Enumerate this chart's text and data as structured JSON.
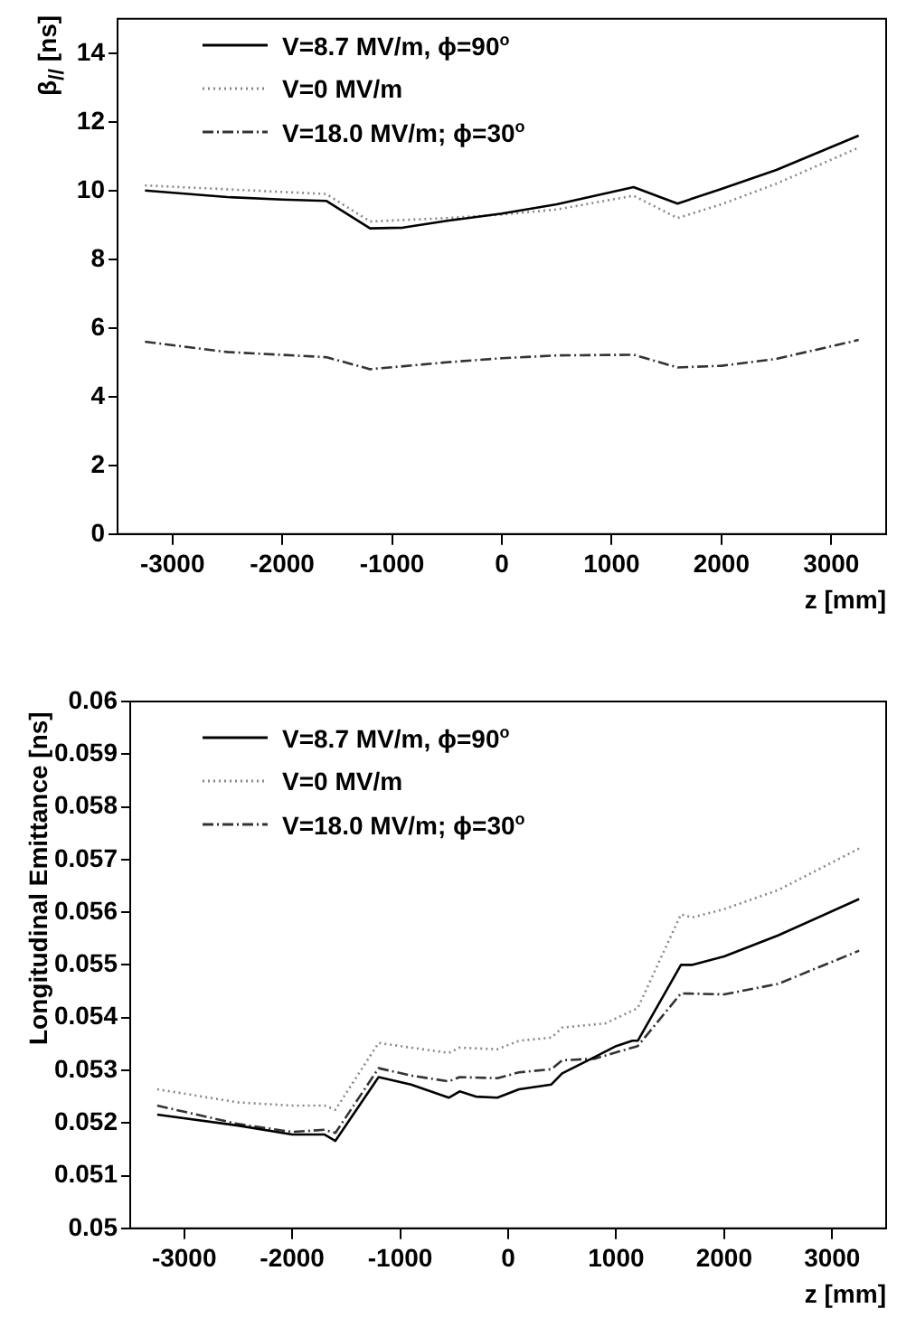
{
  "chart_data": [
    {
      "type": "line",
      "ylabel": "β$_{//}$ [ns]",
      "xlabel": "z [mm]",
      "xlim": [
        -3500,
        3500
      ],
      "xticks": [
        -3000,
        -2000,
        -1000,
        0,
        1000,
        2000,
        3000
      ],
      "ylim": [
        0,
        15
      ],
      "yticks": [
        0,
        2,
        4,
        6,
        8,
        10,
        12,
        14
      ],
      "grid": false,
      "legend": "top left",
      "marker": "none",
      "series": [
        {
          "name": "V=8.7 MV/m, ϕ=90$^{o}$",
          "color": "#000000",
          "line_style": "solid",
          "x": [
            -3250,
            -2500,
            -2000,
            -1600,
            -1200,
            -900,
            -500,
            0,
            500,
            1200,
            1600,
            2000,
            2500,
            3250
          ],
          "values": [
            10.0,
            9.81,
            9.74,
            9.7,
            8.9,
            8.92,
            9.12,
            9.33,
            9.6,
            10.1,
            9.62,
            10.05,
            10.6,
            11.6
          ]
        },
        {
          "name": "V=0 MV/m",
          "color": "#888888",
          "line_style": "dotted",
          "x": [
            -3250,
            -1600,
            -1200,
            -500,
            0,
            500,
            1200,
            1600,
            2000,
            2500,
            3250
          ],
          "values": [
            10.15,
            9.9,
            9.1,
            9.2,
            9.3,
            9.45,
            9.85,
            9.2,
            9.6,
            10.2,
            11.25
          ]
        },
        {
          "name": "V=18.0 MV/m; ϕ=30$^{o}$",
          "color": "#333333",
          "line_style": "dashed",
          "x": [
            -3250,
            -2500,
            -1600,
            -1200,
            -500,
            0,
            500,
            1200,
            1600,
            2000,
            2500,
            3250
          ],
          "values": [
            5.6,
            5.3,
            5.15,
            4.8,
            5.0,
            5.12,
            5.2,
            5.22,
            4.85,
            4.9,
            5.1,
            5.65
          ]
        }
      ]
    },
    {
      "type": "line",
      "ylabel": "Longitudinal Emittance [ns]",
      "xlabel": "z [mm]",
      "xlim": [
        -3500,
        3500
      ],
      "xticks": [
        -3000,
        -2000,
        -1000,
        0,
        1000,
        2000,
        3000
      ],
      "ylim": [
        0.05,
        0.06
      ],
      "yticks": [
        0.05,
        0.051,
        0.052,
        0.053,
        0.054,
        0.055,
        0.056,
        0.057,
        0.058,
        0.059,
        0.06
      ],
      "grid": false,
      "legend": "top left",
      "marker": "none",
      "series": [
        {
          "name": "V=8.7 MV/m, ϕ=90$^{o}$",
          "color": "#000000",
          "line_style": "solid",
          "x": [
            -3250,
            -2500,
            -2000,
            -1700,
            -1600,
            -1200,
            -900,
            -550,
            -450,
            -300,
            -100,
            100,
            400,
            500,
            800,
            1000,
            1150,
            1200,
            1600,
            1700,
            2000,
            2500,
            3250
          ],
          "values": [
            0.05216,
            0.05195,
            0.05178,
            0.05178,
            0.05166,
            0.05287,
            0.05273,
            0.05248,
            0.0526,
            0.0525,
            0.05248,
            0.05264,
            0.05273,
            0.05294,
            0.05325,
            0.05346,
            0.05356,
            0.05356,
            0.055,
            0.055,
            0.05516,
            0.05556,
            0.05625
          ]
        },
        {
          "name": "V=0 MV/m",
          "color": "#888888",
          "line_style": "dotted",
          "x": [
            -3250,
            -2500,
            -2000,
            -1700,
            -1600,
            -1200,
            -900,
            -550,
            -450,
            -100,
            100,
            400,
            500,
            900,
            1200,
            1600,
            1700,
            2000,
            2500,
            3250
          ],
          "values": [
            0.05264,
            0.05239,
            0.05233,
            0.05233,
            0.05225,
            0.05352,
            0.05343,
            0.05333,
            0.05343,
            0.0534,
            0.05356,
            0.05362,
            0.05381,
            0.05389,
            0.05418,
            0.05596,
            0.0559,
            0.05606,
            0.05642,
            0.05721
          ]
        },
        {
          "name": "V=18.0 MV/m; ϕ=30$^{o}$",
          "color": "#333333",
          "line_style": "dashed",
          "x": [
            -3250,
            -2500,
            -2000,
            -1700,
            -1600,
            -1200,
            -900,
            -550,
            -450,
            -100,
            100,
            400,
            500,
            800,
            1200,
            1600,
            2000,
            2500,
            3250
          ],
          "values": [
            0.05233,
            0.05198,
            0.05183,
            0.05187,
            0.05181,
            0.05304,
            0.0529,
            0.05279,
            0.05287,
            0.05285,
            0.05296,
            0.05302,
            0.05319,
            0.05322,
            0.05346,
            0.05446,
            0.05444,
            0.05464,
            0.05527
          ]
        }
      ]
    }
  ]
}
